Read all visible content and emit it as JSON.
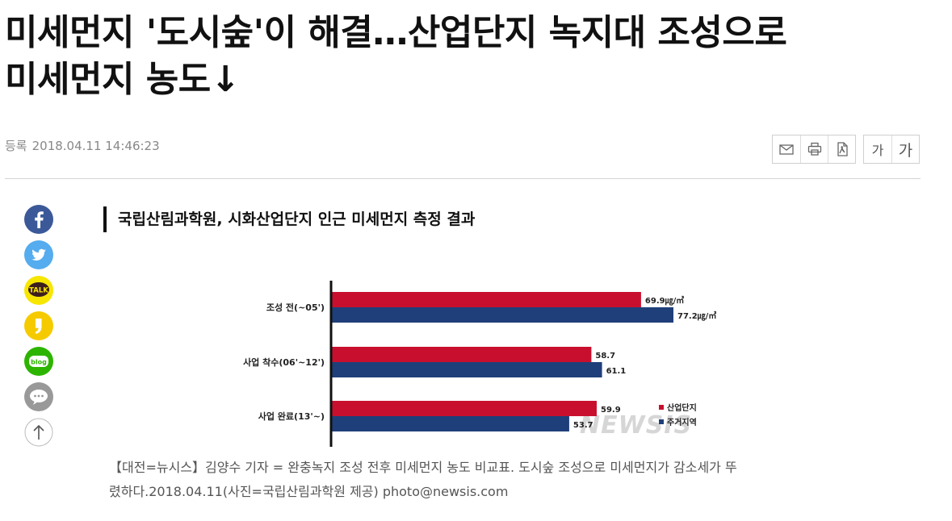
{
  "article": {
    "headline_line1": "미세먼지 '도시숲'이 해결…산업단지 녹지대 조성으로",
    "headline_line2": "미세먼지 농도↓",
    "date_label": "등록",
    "date_value": "2018.04.11 14:46:23"
  },
  "toolbar": {
    "email_icon": "mail-icon",
    "print_icon": "print-icon",
    "pdf_icon": "pdf-icon",
    "font_smaller_label": "가",
    "font_larger_label": "가"
  },
  "share": {
    "items": [
      "facebook",
      "twitter",
      "kakaotalk",
      "kakaostory",
      "naver-blog",
      "comment",
      "scroll-top"
    ],
    "colors": {
      "facebook": "#3b5998",
      "twitter": "#55acee",
      "kakaotalk": "#f7e600",
      "kakaostory": "#f5cb00",
      "naver-blog": "#2db400",
      "comment": "#999999"
    },
    "talk_label": "TALK",
    "blog_label": "blog"
  },
  "figure": {
    "title": "국립산림과학원, 시화산업단지 인근 미세먼지 측정 결과",
    "watermark": "NEWSIS"
  },
  "chart_data": {
    "type": "bar",
    "orientation": "horizontal",
    "categories": [
      "조성 전(~05')",
      "사업 착수(06'~12')",
      "사업 완료(13'~)"
    ],
    "series": [
      {
        "name": "산업단지",
        "color": "#c8102e",
        "values": [
          69.9,
          58.7,
          59.9
        ],
        "labels": [
          "69.9㎍/㎥",
          "58.7",
          "59.9"
        ]
      },
      {
        "name": "주거지역",
        "color": "#1f3f7a",
        "values": [
          77.2,
          61.1,
          53.7
        ],
        "labels": [
          "77.2㎍/㎥",
          "61.1",
          "53.7"
        ]
      }
    ],
    "legend": "bottom-right",
    "grid": false
  },
  "caption": {
    "line1": "【대전=뉴시스】김양수 기자 = 완충녹지 조성 전후 미세먼지 농도 비교표. 도시숲 조성으로 미세먼지가 감소세가 뚜",
    "line2": "렸하다.2018.04.11(사진=국립산림과학원 제공) photo@newsis.com"
  }
}
